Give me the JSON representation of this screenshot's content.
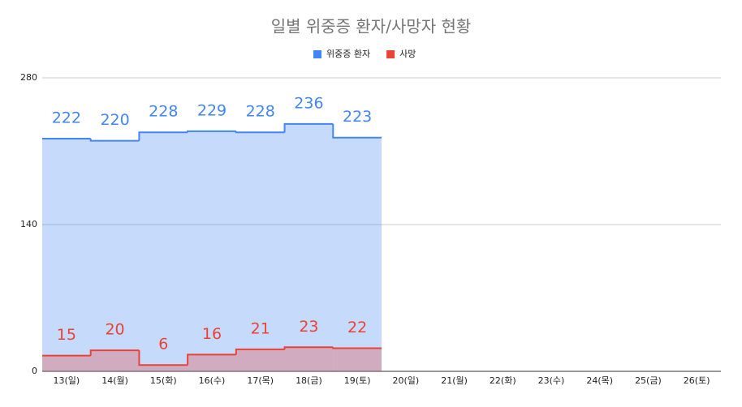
{
  "chart_data": {
    "type": "stepped-area",
    "title": "일별 위중증 환자/사망자 현황",
    "categories": [
      "13(일)",
      "14(월)",
      "15(화)",
      "16(수)",
      "17(목)",
      "18(금)",
      "19(토)",
      "20(일)",
      "21(월)",
      "22(화)",
      "23(수)",
      "24(목)",
      "25(금)",
      "26(토)"
    ],
    "series": [
      {
        "name": "위중증 환자",
        "color": "#4285f4",
        "values": [
          222,
          220,
          228,
          229,
          228,
          236,
          223,
          null,
          null,
          null,
          null,
          null,
          null,
          null
        ]
      },
      {
        "name": "사망",
        "color": "#ea4335",
        "values": [
          15,
          20,
          6,
          16,
          21,
          23,
          22,
          null,
          null,
          null,
          null,
          null,
          null,
          null
        ]
      }
    ],
    "ylim": [
      0,
      280
    ],
    "yticks": [
      0,
      140,
      280
    ],
    "grid": true,
    "legend": "top"
  }
}
